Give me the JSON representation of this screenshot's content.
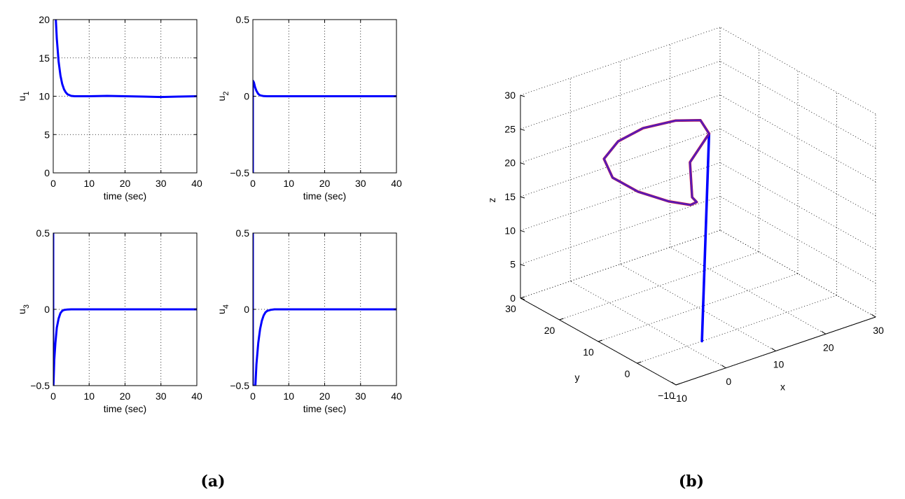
{
  "captions": {
    "a": "(a)",
    "b": "(b)"
  },
  "chart_data": [
    {
      "type": "line",
      "panel": "a",
      "ylabel": "u",
      "ylabel_sub": "1",
      "xlabel": "time (sec)",
      "xlim": [
        0,
        40
      ],
      "ylim": [
        0,
        20
      ],
      "xticks": [
        0,
        10,
        20,
        30,
        40
      ],
      "yticks": [
        0,
        5,
        10,
        15,
        20
      ],
      "grid": true,
      "color": "#0000ff",
      "x": [
        0,
        0.5,
        1,
        1.5,
        2,
        2.5,
        3,
        3.5,
        4,
        5,
        6,
        8,
        10,
        15,
        20,
        25,
        30,
        35,
        40
      ],
      "y": [
        30,
        22,
        17.5,
        14.5,
        12.7,
        11.6,
        10.9,
        10.5,
        10.25,
        10.05,
        10.0,
        10.0,
        10.0,
        10.05,
        10.0,
        9.95,
        9.9,
        9.95,
        10.0
      ]
    },
    {
      "type": "line",
      "panel": "a",
      "ylabel": "u",
      "ylabel_sub": "2",
      "xlabel": "time (sec)",
      "xlim": [
        0,
        40
      ],
      "ylim": [
        -0.5,
        0.5
      ],
      "xticks": [
        0,
        10,
        20,
        30,
        40
      ],
      "yticks": [
        -0.5,
        0,
        0.5
      ],
      "ytick_labels": [
        "−0.5",
        "0",
        "0.5"
      ],
      "grid": true,
      "color": "#0000ff",
      "x": [
        0,
        0,
        0.05,
        0.3,
        0.6,
        1,
        1.5,
        2,
        3,
        4,
        10,
        20,
        30,
        40
      ],
      "y": [
        -0.5,
        0.1,
        0.1,
        0.09,
        0.06,
        0.035,
        0.015,
        0.006,
        0.001,
        0,
        0,
        0,
        0,
        0
      ]
    },
    {
      "type": "line",
      "panel": "a",
      "ylabel": "u",
      "ylabel_sub": "3",
      "xlabel": "time (sec)",
      "xlim": [
        0,
        40
      ],
      "ylim": [
        -0.5,
        0.5
      ],
      "xticks": [
        0,
        10,
        20,
        30,
        40
      ],
      "yticks": [
        -0.5,
        0,
        0.5
      ],
      "ytick_labels": [
        "−0.5",
        "0",
        "0.5"
      ],
      "grid": true,
      "color": "#0000ff",
      "x": [
        0,
        0,
        0.05,
        0.3,
        0.6,
        1,
        1.5,
        2,
        2.5,
        3,
        4,
        5,
        10,
        20,
        30,
        40
      ],
      "y": [
        0.5,
        -0.5,
        -0.5,
        -0.33,
        -0.22,
        -0.12,
        -0.06,
        -0.025,
        -0.01,
        -0.004,
        -0.001,
        0,
        0,
        0,
        0,
        0
      ]
    },
    {
      "type": "line",
      "panel": "a",
      "ylabel": "u",
      "ylabel_sub": "4",
      "xlabel": "time (sec)",
      "xlim": [
        0,
        40
      ],
      "ylim": [
        -0.5,
        0.5
      ],
      "xticks": [
        0,
        10,
        20,
        30,
        40
      ],
      "yticks": [
        -0.5,
        0,
        0.5
      ],
      "ytick_labels": [
        "−0.5",
        "0",
        "0.5"
      ],
      "grid": true,
      "color": "#0000ff",
      "x": [
        0,
        0,
        0.7,
        1,
        1.5,
        2,
        2.5,
        3,
        3.5,
        4,
        5,
        6,
        10,
        20,
        30,
        40
      ],
      "y": [
        0.5,
        -0.5,
        -0.5,
        -0.36,
        -0.22,
        -0.13,
        -0.075,
        -0.04,
        -0.02,
        -0.01,
        -0.003,
        0,
        0,
        0,
        0,
        0
      ]
    },
    {
      "type": "line",
      "panel": "b",
      "projection": "3d",
      "xlabel": "x",
      "ylabel": "y",
      "zlabel": "z",
      "xlim": [
        -10,
        30
      ],
      "ylim": [
        -10,
        30
      ],
      "zlim": [
        0,
        30
      ],
      "xticks": [
        -10,
        0,
        10,
        20,
        30
      ],
      "yticks": [
        -10,
        0,
        10,
        20,
        30
      ],
      "zticks": [
        0,
        5,
        10,
        15,
        20,
        25,
        30
      ],
      "xtick_labels": [
        "−10",
        "0",
        "10",
        "20",
        "30"
      ],
      "ytick_labels": [
        "−10",
        "0",
        "10",
        "20",
        "30"
      ],
      "grid": true,
      "series": [
        {
          "color": "#0000ff",
          "points": [
            [
              3,
              0,
              0
            ],
            [
              20,
              20,
              20
            ]
          ]
        },
        {
          "color": "#ff0000",
          "points": [
            [
              20,
              20,
              20
            ],
            [
              21,
              23.5,
              20.6
            ],
            [
              18,
              26,
              20.5
            ],
            [
              13,
              28,
              20
            ],
            [
              8,
              28,
              19.3
            ],
            [
              4,
              26.5,
              18.2
            ],
            [
              3,
              23,
              16.8
            ],
            [
              5,
              19,
              15.5
            ],
            [
              8,
              15,
              14.6
            ],
            [
              11,
              13.2,
              13.9
            ],
            [
              13,
              14.2,
              13.5
            ],
            [
              13.5,
              16,
              13.5
            ],
            [
              15,
              18.5,
              17.5
            ],
            [
              20,
              20,
              20
            ]
          ]
        },
        {
          "color": "#5a1bb4",
          "points": [
            [
              20,
              20,
              20
            ],
            [
              21,
              23.5,
              20.6
            ],
            [
              18,
              26,
              20.5
            ],
            [
              13,
              28,
              20
            ],
            [
              8,
              28,
              19.3
            ],
            [
              4,
              26.5,
              18.2
            ],
            [
              3,
              23,
              16.8
            ],
            [
              5,
              19,
              15.5
            ],
            [
              8,
              15,
              14.6
            ],
            [
              11,
              13.2,
              13.9
            ],
            [
              13,
              14.2,
              13.5
            ],
            [
              13.5,
              16,
              13.5
            ],
            [
              15,
              18.5,
              17.5
            ],
            [
              20,
              20,
              20
            ]
          ]
        }
      ]
    }
  ]
}
